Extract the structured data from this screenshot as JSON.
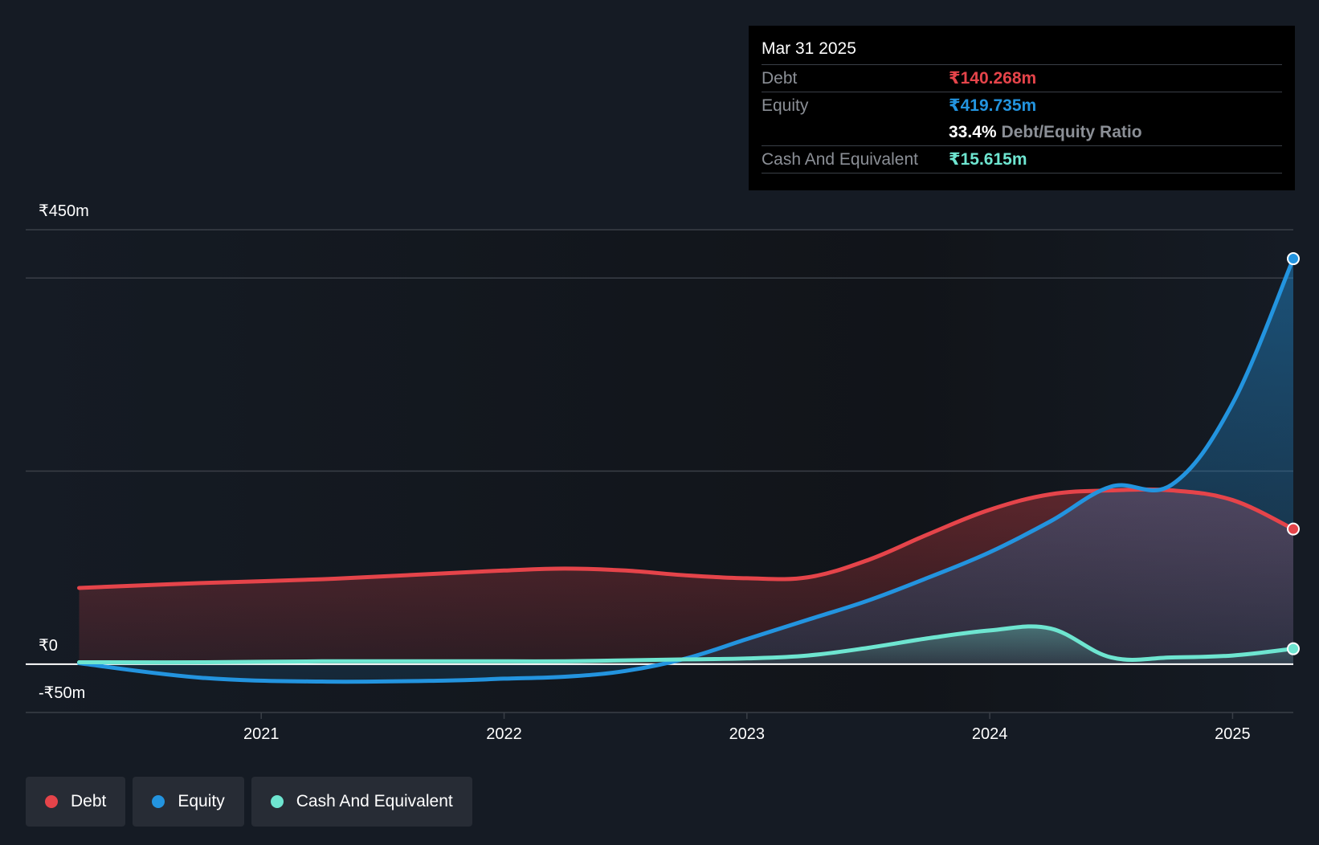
{
  "tooltip": {
    "date": "Mar 31 2025",
    "debt_label": "Debt",
    "debt_value": "₹140.268m",
    "equity_label": "Equity",
    "equity_value": "₹419.735m",
    "ratio_value": "33.4%",
    "ratio_label": "Debt/Equity Ratio",
    "cash_label": "Cash And Equivalent",
    "cash_value": "₹15.615m"
  },
  "legend": {
    "debt": "Debt",
    "equity": "Equity",
    "cash": "Cash And Equivalent"
  },
  "colors": {
    "debt": "#e5444a",
    "equity": "#2394df",
    "cash": "#6ee5d0",
    "background": "#151b24",
    "tooltip_bg": "#000000",
    "legend_bg": "#272c35"
  },
  "chart_data": {
    "type": "area",
    "title": "",
    "xlabel": "",
    "ylabel": "",
    "y_tick_labels": [
      "₹450m",
      "₹0",
      "-₹50m"
    ],
    "x_tick_labels": [
      "2021",
      "2022",
      "2023",
      "2024",
      "2025"
    ],
    "x_ticks": [
      2021,
      2022,
      2023,
      2024,
      2025
    ],
    "xlim": [
      2020.03,
      2025.25
    ],
    "ylim": [
      -50,
      450
    ],
    "gridlines_y": [
      450,
      400,
      200,
      0,
      -50
    ],
    "series": [
      {
        "name": "Debt",
        "x": [
          2020.25,
          2020.75,
          2021.25,
          2021.75,
          2022.0,
          2022.25,
          2022.5,
          2022.75,
          2023.0,
          2023.25,
          2023.5,
          2023.75,
          2024.0,
          2024.25,
          2024.5,
          2024.75,
          2025.0,
          2025.25
        ],
        "y": [
          79,
          84,
          88,
          94,
          97,
          99,
          97,
          92,
          89,
          90,
          108,
          135,
          160,
          176,
          180,
          180,
          170,
          140
        ]
      },
      {
        "name": "Equity",
        "x": [
          2020.25,
          2020.75,
          2021.25,
          2021.75,
          2022.0,
          2022.25,
          2022.5,
          2022.75,
          2023.0,
          2023.25,
          2023.5,
          2023.75,
          2024.0,
          2024.25,
          2024.5,
          2024.75,
          2025.0,
          2025.25
        ],
        "y": [
          1,
          -14,
          -18,
          -17,
          -15,
          -13,
          -7,
          6,
          26,
          46,
          66,
          90,
          116,
          148,
          184,
          186,
          270,
          420
        ]
      },
      {
        "name": "Cash And Equivalent",
        "x": [
          2020.25,
          2020.75,
          2021.25,
          2021.75,
          2022.0,
          2022.25,
          2022.5,
          2022.75,
          2023.0,
          2023.25,
          2023.5,
          2023.75,
          2024.0,
          2024.25,
          2024.5,
          2024.75,
          2025.0,
          2025.25
        ],
        "y": [
          2,
          2,
          3,
          3,
          3,
          3,
          4,
          5,
          6,
          9,
          17,
          27,
          35,
          37,
          7,
          7,
          9,
          16
        ]
      }
    ]
  }
}
